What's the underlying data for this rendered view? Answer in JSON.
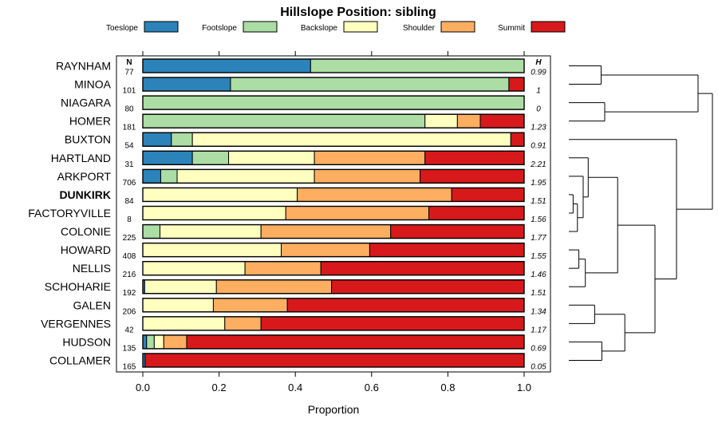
{
  "chart_data": {
    "type": "bar",
    "subtype": "stacked-horizontal-proportion",
    "title": "Hillslope Position: sibling",
    "xlabel": "Proportion",
    "ylabel": "",
    "xlim": [
      0,
      1
    ],
    "x_ticks": [
      "0.0",
      "0.2",
      "0.4",
      "0.6",
      "0.8",
      "1.0"
    ],
    "n_header": "N",
    "h_header": "H",
    "legend_position": "top",
    "components": [
      "Toeslope",
      "Footslope",
      "Backslope",
      "Shoulder",
      "Summit"
    ],
    "colors": {
      "Toeslope": "#2B83BA",
      "Footslope": "#ABDDA4",
      "Backslope": "#FFFFBF",
      "Shoulder": "#FDAE61",
      "Summit": "#D7191C"
    },
    "rows": [
      {
        "name": "RAYNHAM",
        "n": "77",
        "h": "0.99",
        "bold": false,
        "values": [
          0.44,
          0.56,
          0,
          0,
          0
        ]
      },
      {
        "name": "MINOA",
        "n": "101",
        "h": "1",
        "bold": false,
        "values": [
          0.23,
          0.73,
          0,
          0,
          0.04
        ]
      },
      {
        "name": "NIAGARA",
        "n": "80",
        "h": "0",
        "bold": false,
        "values": [
          0,
          1.0,
          0,
          0,
          0
        ]
      },
      {
        "name": "HOMER",
        "n": "181",
        "h": "1.23",
        "bold": false,
        "values": [
          0,
          0.74,
          0.085,
          0.06,
          0.115
        ]
      },
      {
        "name": "BUXTON",
        "n": "54",
        "h": "0.91",
        "bold": false,
        "values": [
          0.075,
          0.055,
          0.835,
          0,
          0.035
        ]
      },
      {
        "name": "HARTLAND",
        "n": "31",
        "h": "2.21",
        "bold": false,
        "values": [
          0.13,
          0.095,
          0.225,
          0.29,
          0.26
        ]
      },
      {
        "name": "ARKPORT",
        "n": "706",
        "h": "1.95",
        "bold": false,
        "values": [
          0.047,
          0.043,
          0.36,
          0.277,
          0.273
        ]
      },
      {
        "name": "DUNKIRK",
        "n": "84",
        "h": "1.51",
        "bold": true,
        "values": [
          0,
          0,
          0.405,
          0.405,
          0.19
        ]
      },
      {
        "name": "FACTORYVILLE",
        "n": "8",
        "h": "1.56",
        "bold": false,
        "values": [
          0,
          0,
          0.375,
          0.375,
          0.25
        ]
      },
      {
        "name": "COLONIE",
        "n": "225",
        "h": "1.77",
        "bold": false,
        "values": [
          0,
          0.045,
          0.265,
          0.34,
          0.35
        ]
      },
      {
        "name": "HOWARD",
        "n": "408",
        "h": "1.55",
        "bold": false,
        "values": [
          0,
          0,
          0.363,
          0.232,
          0.405
        ]
      },
      {
        "name": "NELLIS",
        "n": "216",
        "h": "1.46",
        "bold": false,
        "values": [
          0,
          0,
          0.268,
          0.199,
          0.533
        ]
      },
      {
        "name": "SCHOHARIE",
        "n": "192",
        "h": "1.51",
        "bold": false,
        "values": [
          0.005,
          0,
          0.188,
          0.302,
          0.505
        ]
      },
      {
        "name": "GALEN",
        "n": "206",
        "h": "1.34",
        "bold": false,
        "values": [
          0,
          0,
          0.185,
          0.194,
          0.621
        ]
      },
      {
        "name": "VERGENNES",
        "n": "42",
        "h": "1.17",
        "bold": false,
        "values": [
          0,
          0,
          0.215,
          0.095,
          0.69
        ]
      },
      {
        "name": "HUDSON",
        "n": "135",
        "h": "0.69",
        "bold": false,
        "values": [
          0.01,
          0.02,
          0.025,
          0.06,
          0.885
        ]
      },
      {
        "name": "COLLAMER",
        "n": "165",
        "h": "0.05",
        "bold": false,
        "values": [
          0.006,
          0,
          0,
          0,
          0.994
        ]
      }
    ],
    "dendrogram": {
      "merges": [
        [
          0,
          1,
          0.45
        ],
        [
          2,
          3,
          0.5
        ],
        [
          -1,
          -2,
          1.8
        ],
        [
          7,
          8,
          0.06
        ],
        [
          9,
          -4,
          0.12
        ],
        [
          6,
          -5,
          0.2
        ],
        [
          5,
          -6,
          0.27
        ],
        [
          10,
          11,
          0.14
        ],
        [
          -8,
          12,
          0.23
        ],
        [
          -7,
          -9,
          0.68
        ],
        [
          13,
          14,
          0.36
        ],
        [
          15,
          16,
          0.46
        ],
        [
          -11,
          -12,
          0.78
        ],
        [
          -10,
          -13,
          1.2
        ],
        [
          4,
          -14,
          1.5
        ],
        [
          -3,
          -15,
          2.0
        ]
      ],
      "max_height": 2.0
    }
  }
}
